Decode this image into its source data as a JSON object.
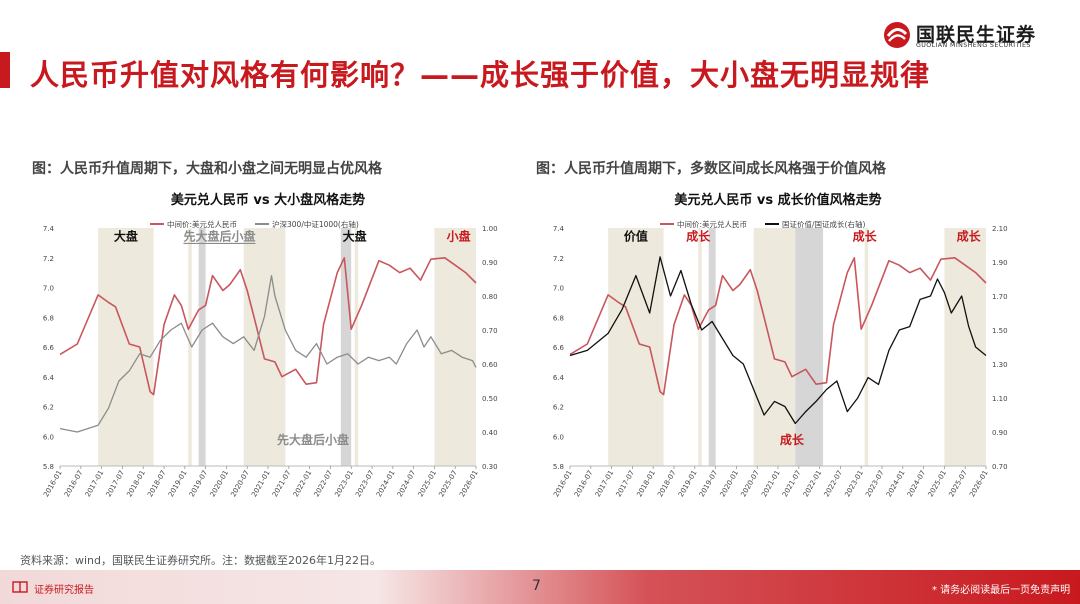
{
  "header": {
    "title": "人民币升值对风格有何影响？——成长强于价值，大小盘无明显规律",
    "logo_cn": "国联民生证券",
    "logo_en": "GUOLIAN MINSHENG SECURITIES"
  },
  "figures": [
    {
      "caption": "图：人民币升值周期下，大盘和小盘之间无明显占优风格"
    },
    {
      "caption": "图：人民币升值周期下，多数区间成长风格强于价值风格"
    }
  ],
  "source": "资料来源：wind，国联民生证券研究所。注：数据截至2026年1月22日。",
  "footer": {
    "left_label": "证券研究报告",
    "page_number": "7",
    "disclaimer": "* 请务必阅读最后一页免责声明"
  },
  "colors": {
    "brand_red": "#c8191e",
    "usdcny_line": "#c9565c",
    "ratio_left_line": "#8c8c8c",
    "ratio_right_line": "#111111",
    "shade": "#ede9dc",
    "shade_dark": "#d6d6d6"
  },
  "chart_data": [
    {
      "type": "line",
      "title": "美元兑人民币 vs 大小盘风格走势",
      "x_ticks": [
        "2016-01",
        "2016-07",
        "2017-01",
        "2017-07",
        "2018-01",
        "2018-07",
        "2019-01",
        "2019-07",
        "2020-01",
        "2020-07",
        "2021-01",
        "2021-07",
        "2022-01",
        "2022-07",
        "2023-01",
        "2023-07",
        "2024-01",
        "2024-07",
        "2025-01",
        "2025-07",
        "2026-01"
      ],
      "x_range": [
        "2016-01",
        "2026-01"
      ],
      "y_left": {
        "ylim": [
          5.8,
          7.4
        ],
        "ticks": [
          "5.8",
          "6.0",
          "6.2",
          "6.4",
          "6.6",
          "6.8",
          "7.0",
          "7.2",
          "7.4"
        ]
      },
      "y_right": {
        "ylim": [
          0.3,
          1.0
        ],
        "ticks": [
          "0.30",
          "0.40",
          "0.50",
          "0.60",
          "0.70",
          "0.80",
          "0.90",
          "1.00"
        ]
      },
      "legend": {
        "placement": "top"
      },
      "series": [
        {
          "name": "中间价:美元兑人民币",
          "axis": "left",
          "color": "#c9565c",
          "x": [
            "2016-01",
            "2016-06",
            "2016-12",
            "2017-03",
            "2017-05",
            "2017-09",
            "2017-12",
            "2018-03",
            "2018-04",
            "2018-07",
            "2018-10",
            "2018-12",
            "2019-02",
            "2019-05",
            "2019-07",
            "2019-09",
            "2019-12",
            "2020-02",
            "2020-05",
            "2020-07",
            "2020-09",
            "2020-12",
            "2021-03",
            "2021-05",
            "2021-09",
            "2021-12",
            "2022-03",
            "2022-05",
            "2022-09",
            "2022-11",
            "2023-01",
            "2023-04",
            "2023-09",
            "2023-12",
            "2024-03",
            "2024-06",
            "2024-09",
            "2024-12",
            "2025-04",
            "2025-07",
            "2025-10",
            "2026-01"
          ],
          "y": [
            6.55,
            6.62,
            6.95,
            6.9,
            6.87,
            6.62,
            6.6,
            6.3,
            6.28,
            6.75,
            6.95,
            6.88,
            6.72,
            6.85,
            6.88,
            7.08,
            6.98,
            7.02,
            7.12,
            6.98,
            6.8,
            6.52,
            6.5,
            6.4,
            6.45,
            6.35,
            6.36,
            6.75,
            7.1,
            7.2,
            6.72,
            6.88,
            7.18,
            7.15,
            7.1,
            7.13,
            7.05,
            7.19,
            7.2,
            7.15,
            7.1,
            7.03
          ]
        },
        {
          "name": "沪深300/中证1000(右轴)",
          "axis": "right",
          "color": "#8c8c8c",
          "x": [
            "2016-01",
            "2016-06",
            "2016-12",
            "2017-03",
            "2017-06",
            "2017-09",
            "2017-12",
            "2018-03",
            "2018-06",
            "2018-09",
            "2018-12",
            "2019-03",
            "2019-06",
            "2019-09",
            "2019-12",
            "2020-03",
            "2020-06",
            "2020-09",
            "2020-12",
            "2021-02",
            "2021-03",
            "2021-06",
            "2021-09",
            "2021-12",
            "2022-03",
            "2022-06",
            "2022-09",
            "2022-12",
            "2023-03",
            "2023-06",
            "2023-09",
            "2023-12",
            "2024-02",
            "2024-05",
            "2024-08",
            "2024-10",
            "2024-12",
            "2025-03",
            "2025-06",
            "2025-09",
            "2025-12",
            "2026-01"
          ],
          "y": [
            0.41,
            0.4,
            0.42,
            0.47,
            0.55,
            0.58,
            0.63,
            0.62,
            0.67,
            0.7,
            0.72,
            0.65,
            0.7,
            0.72,
            0.68,
            0.66,
            0.68,
            0.64,
            0.74,
            0.86,
            0.8,
            0.7,
            0.64,
            0.62,
            0.66,
            0.6,
            0.62,
            0.63,
            0.6,
            0.62,
            0.61,
            0.62,
            0.6,
            0.66,
            0.7,
            0.65,
            0.68,
            0.63,
            0.64,
            0.62,
            0.61,
            0.59
          ]
        }
      ],
      "shaded_periods": [
        {
          "from": "2016-12",
          "to": "2018-04"
        },
        {
          "from": "2019-02",
          "to": "2019-03"
        },
        {
          "from": "2019-05",
          "to": "2019-07",
          "dark": true
        },
        {
          "from": "2020-06",
          "to": "2021-06"
        },
        {
          "from": "2022-10",
          "to": "2023-01",
          "dark": true
        },
        {
          "from": "2023-02",
          "to": "2023-03"
        },
        {
          "from": "2025-01",
          "to": "2026-01"
        }
      ],
      "annotations": [
        {
          "text": "大盘",
          "x": "2017-08",
          "y": 7.35,
          "color": "#111111"
        },
        {
          "text": "先大盘后小盘",
          "x": "2019-11",
          "y": 7.35,
          "color": "#8c8c8c",
          "underline": true
        },
        {
          "text": "大盘",
          "x": "2023-02",
          "y": 7.35,
          "color": "#111111"
        },
        {
          "text": "小盘",
          "x": "2025-08",
          "y": 7.35,
          "color": "#c8191e"
        },
        {
          "text": "先大盘后小盘",
          "x": "2022-02",
          "y": 5.98,
          "color": "#8c8c8c"
        }
      ]
    },
    {
      "type": "line",
      "title": "美元兑人民币 vs 成长价值风格走势",
      "x_ticks": [
        "2016-01",
        "2016-07",
        "2017-01",
        "2017-07",
        "2018-01",
        "2018-07",
        "2019-01",
        "2019-07",
        "2020-01",
        "2020-07",
        "2021-01",
        "2021-07",
        "2022-01",
        "2022-07",
        "2023-01",
        "2023-07",
        "2024-01",
        "2024-07",
        "2025-01",
        "2025-07",
        "2026-01"
      ],
      "x_range": [
        "2016-01",
        "2026-01"
      ],
      "y_left": {
        "ylim": [
          5.8,
          7.4
        ],
        "ticks": [
          "5.8",
          "6.0",
          "6.2",
          "6.4",
          "6.6",
          "6.8",
          "7.0",
          "7.2",
          "7.4"
        ]
      },
      "y_right": {
        "ylim": [
          0.7,
          2.1
        ],
        "ticks": [
          "0.70",
          "0.90",
          "1.10",
          "1.30",
          "1.50",
          "1.70",
          "1.90",
          "2.10"
        ]
      },
      "legend": {
        "placement": "top"
      },
      "series": [
        {
          "name": "中间价:美元兑人民币",
          "axis": "left",
          "color": "#c9565c",
          "x": [
            "2016-01",
            "2016-06",
            "2016-12",
            "2017-03",
            "2017-05",
            "2017-09",
            "2017-12",
            "2018-03",
            "2018-04",
            "2018-07",
            "2018-10",
            "2018-12",
            "2019-02",
            "2019-05",
            "2019-07",
            "2019-09",
            "2019-12",
            "2020-02",
            "2020-05",
            "2020-07",
            "2020-09",
            "2020-12",
            "2021-03",
            "2021-05",
            "2021-09",
            "2021-12",
            "2022-03",
            "2022-05",
            "2022-09",
            "2022-11",
            "2023-01",
            "2023-04",
            "2023-09",
            "2023-12",
            "2024-03",
            "2024-06",
            "2024-09",
            "2024-12",
            "2025-04",
            "2025-07",
            "2025-10",
            "2026-01"
          ],
          "y": [
            6.55,
            6.62,
            6.95,
            6.9,
            6.87,
            6.62,
            6.6,
            6.3,
            6.28,
            6.75,
            6.95,
            6.88,
            6.72,
            6.85,
            6.88,
            7.08,
            6.98,
            7.02,
            7.12,
            6.98,
            6.8,
            6.52,
            6.5,
            6.4,
            6.45,
            6.35,
            6.36,
            6.75,
            7.1,
            7.2,
            6.72,
            6.88,
            7.18,
            7.15,
            7.1,
            7.13,
            7.05,
            7.19,
            7.2,
            7.15,
            7.1,
            7.03
          ]
        },
        {
          "name": "国证价值/国证成长(右轴)",
          "axis": "right",
          "color": "#111111",
          "x": [
            "2016-01",
            "2016-06",
            "2016-12",
            "2017-04",
            "2017-08",
            "2017-12",
            "2018-03",
            "2018-06",
            "2018-09",
            "2018-12",
            "2019-03",
            "2019-06",
            "2019-09",
            "2019-12",
            "2020-03",
            "2020-06",
            "2020-09",
            "2020-12",
            "2021-03",
            "2021-06",
            "2021-09",
            "2021-12",
            "2022-03",
            "2022-06",
            "2022-09",
            "2022-12",
            "2023-03",
            "2023-06",
            "2023-09",
            "2023-12",
            "2024-03",
            "2024-06",
            "2024-09",
            "2024-11",
            "2025-01",
            "2025-03",
            "2025-06",
            "2025-08",
            "2025-10",
            "2026-01"
          ],
          "y": [
            1.35,
            1.38,
            1.48,
            1.62,
            1.82,
            1.6,
            1.93,
            1.7,
            1.85,
            1.65,
            1.5,
            1.55,
            1.45,
            1.35,
            1.3,
            1.15,
            1.0,
            1.08,
            1.05,
            0.95,
            1.02,
            1.08,
            1.15,
            1.2,
            1.02,
            1.1,
            1.22,
            1.18,
            1.38,
            1.5,
            1.52,
            1.68,
            1.7,
            1.8,
            1.72,
            1.6,
            1.7,
            1.52,
            1.4,
            1.35
          ]
        }
      ],
      "shaded_periods": [
        {
          "from": "2016-12",
          "to": "2018-04"
        },
        {
          "from": "2019-02",
          "to": "2019-03"
        },
        {
          "from": "2019-05",
          "to": "2019-07",
          "dark": true
        },
        {
          "from": "2020-06",
          "to": "2021-06"
        },
        {
          "from": "2021-06",
          "to": "2022-02",
          "dark": true
        },
        {
          "from": "2023-02",
          "to": "2023-03"
        },
        {
          "from": "2025-01",
          "to": "2026-01"
        }
      ],
      "annotations": [
        {
          "text": "价值",
          "x": "2017-08",
          "y": 7.35,
          "color": "#111111"
        },
        {
          "text": "成长",
          "x": "2019-02",
          "y": 7.35,
          "color": "#c8191e"
        },
        {
          "text": "成长",
          "x": "2023-02",
          "y": 7.35,
          "color": "#c8191e"
        },
        {
          "text": "成长",
          "x": "2025-08",
          "y": 7.35,
          "color": "#c8191e"
        },
        {
          "text": "成长",
          "x": "2021-05",
          "y": 5.98,
          "color": "#c8191e"
        }
      ]
    }
  ]
}
